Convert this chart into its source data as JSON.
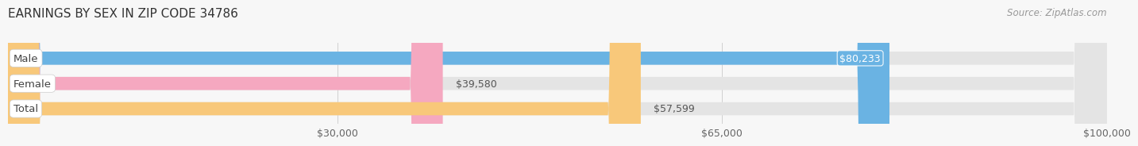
{
  "title": "EARNINGS BY SEX IN ZIP CODE 34786",
  "source": "Source: ZipAtlas.com",
  "categories": [
    "Male",
    "Female",
    "Total"
  ],
  "values": [
    80233,
    39580,
    57599
  ],
  "bar_colors": [
    "#6ab3e3",
    "#f5a8c0",
    "#f8c87a"
  ],
  "bar_bg_color": "#e4e4e4",
  "background_color": "#f7f7f7",
  "xmin": 0,
  "xmax": 100000,
  "xticks": [
    30000,
    65000,
    100000
  ],
  "xtick_labels": [
    "$30,000",
    "$65,000",
    "$100,000"
  ],
  "value_labels": [
    "$80,233",
    "$39,580",
    "$57,599"
  ],
  "title_fontsize": 11,
  "source_fontsize": 8.5,
  "bar_label_fontsize": 9,
  "category_fontsize": 9.5,
  "tick_fontsize": 9,
  "bar_height": 0.52,
  "label_inside_threshold": 60000
}
